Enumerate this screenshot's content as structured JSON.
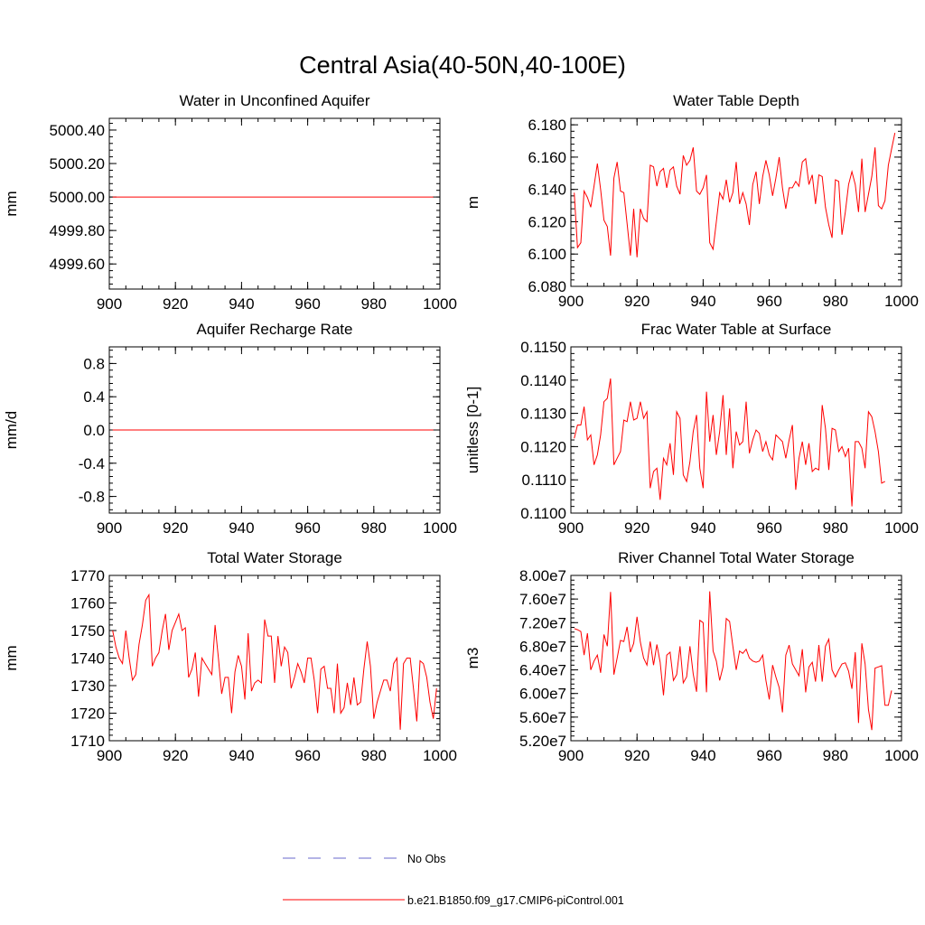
{
  "page": {
    "title": "Central Asia(40-50N,40-100E)"
  },
  "colors": {
    "series": "#ff0000",
    "obs": "#6a6acd",
    "frame": "#000000"
  },
  "legend": {
    "obs_label": "No Obs",
    "model_label": "b.e21.B1850.f09_g17.CMIP6-piControl.001"
  },
  "chart_data": [
    {
      "type": "line",
      "title": "Water in Unconfined Aquifer",
      "xlabel": "",
      "ylabel": "mm",
      "xlim": [
        900,
        1000
      ],
      "ylim": [
        4999.45,
        5000.47
      ],
      "xticks": [
        900,
        920,
        940,
        960,
        980,
        1000
      ],
      "xtick_labels": [
        "900",
        "920",
        "940",
        "960",
        "980",
        "1000"
      ],
      "yticks": [
        4999.6,
        4999.8,
        5000.0,
        5000.2,
        5000.4
      ],
      "ytick_labels": [
        "4999.60",
        "4999.80",
        "5000.00",
        "5000.20",
        "5000.40"
      ],
      "series": [
        {
          "x_start": 901,
          "values": [
            5000.0,
            5000.0,
            5000.0,
            5000.0,
            5000.0,
            5000.0,
            5000.0,
            5000.0,
            5000.0,
            5000.0,
            5000.0,
            5000.0,
            5000.0,
            5000.0,
            5000.0,
            5000.0,
            5000.0,
            5000.0,
            5000.0,
            5000.0,
            5000.0,
            5000.0,
            5000.0,
            5000.0,
            5000.0,
            5000.0,
            5000.0,
            5000.0,
            5000.0,
            5000.0,
            5000.0,
            5000.0,
            5000.0,
            5000.0,
            5000.0,
            5000.0,
            5000.0,
            5000.0,
            5000.0,
            5000.0,
            5000.0,
            5000.0,
            5000.0,
            5000.0,
            5000.0,
            5000.0,
            5000.0,
            5000.0,
            5000.0,
            5000.0,
            5000.0,
            5000.0,
            5000.0,
            5000.0,
            5000.0,
            5000.0,
            5000.0,
            5000.0,
            5000.0,
            5000.0,
            5000.0,
            5000.0,
            5000.0,
            5000.0,
            5000.0,
            5000.0,
            5000.0,
            5000.0,
            5000.0,
            5000.0,
            5000.0,
            5000.0,
            5000.0,
            5000.0,
            5000.0,
            5000.0,
            5000.0,
            5000.0,
            5000.0,
            5000.0,
            5000.0,
            5000.0,
            5000.0,
            5000.0,
            5000.0,
            5000.0,
            5000.0,
            5000.0,
            5000.0,
            5000.0,
            5000.0,
            5000.0,
            5000.0,
            5000.0,
            5000.0,
            5000.0,
            5000.0,
            5000.0
          ]
        }
      ]
    },
    {
      "type": "line",
      "title": "Water Table Depth",
      "xlabel": "",
      "ylabel": "m",
      "xlim": [
        900,
        1000
      ],
      "ylim": [
        6.08,
        6.184
      ],
      "xticks": [
        900,
        920,
        940,
        960,
        980,
        1000
      ],
      "xtick_labels": [
        "900",
        "920",
        "940",
        "960",
        "980",
        "1000"
      ],
      "yticks": [
        6.08,
        6.1,
        6.12,
        6.14,
        6.16,
        6.18
      ],
      "ytick_labels": [
        "6.080",
        "6.100",
        "6.120",
        "6.140",
        "6.160",
        "6.180"
      ],
      "series": [
        {
          "x_start": 901,
          "values": [
            6.138,
            6.104,
            6.107,
            6.139,
            6.135,
            6.129,
            6.142,
            6.156,
            6.14,
            6.121,
            6.117,
            6.099,
            6.147,
            6.157,
            6.139,
            6.138,
            6.119,
            6.099,
            6.128,
            6.098,
            6.128,
            6.122,
            6.12,
            6.155,
            6.154,
            6.142,
            6.151,
            6.153,
            6.141,
            6.152,
            6.154,
            6.142,
            6.137,
            6.161,
            6.155,
            6.158,
            6.166,
            6.139,
            6.137,
            6.141,
            6.149,
            6.107,
            6.103,
            6.12,
            6.138,
            6.134,
            6.146,
            6.132,
            6.138,
            6.157,
            6.131,
            6.138,
            6.131,
            6.118,
            6.143,
            6.151,
            6.131,
            6.148,
            6.158,
            6.149,
            6.136,
            6.147,
            6.16,
            6.141,
            6.128,
            6.141,
            6.141,
            6.145,
            6.142,
            6.157,
            6.159,
            6.143,
            6.149,
            6.131,
            6.149,
            6.148,
            6.129,
            6.118,
            6.11,
            6.146,
            6.145,
            6.112,
            6.126,
            6.143,
            6.151,
            6.143,
            6.126,
            6.159,
            6.126,
            6.137,
            6.148,
            6.166,
            6.13,
            6.128,
            6.133,
            6.155,
            6.165,
            6.175
          ]
        }
      ]
    },
    {
      "type": "line",
      "title": "Aquifer Recharge Rate",
      "xlabel": "",
      "ylabel": "mm/d",
      "xlim": [
        900,
        1000
      ],
      "ylim": [
        -1.0,
        1.0
      ],
      "xticks": [
        900,
        920,
        940,
        960,
        980,
        1000
      ],
      "xtick_labels": [
        "900",
        "920",
        "940",
        "960",
        "980",
        "1000"
      ],
      "yticks": [
        -0.8,
        -0.4,
        0.0,
        0.4,
        0.8
      ],
      "ytick_labels": [
        "-0.8",
        "-0.4",
        "0.0",
        "0.4",
        "0.8"
      ],
      "series": [
        {
          "x_start": 901,
          "values": [
            0,
            0,
            0,
            0,
            0,
            0,
            0,
            0,
            0,
            0,
            0,
            0,
            0,
            0,
            0,
            0,
            0,
            0,
            0,
            0,
            0,
            0,
            0,
            0,
            0,
            0,
            0,
            0,
            0,
            0,
            0,
            0,
            0,
            0,
            0,
            0,
            0,
            0,
            0,
            0,
            0,
            0,
            0,
            0,
            0,
            0,
            0,
            0,
            0,
            0,
            0,
            0,
            0,
            0,
            0,
            0,
            0,
            0,
            0,
            0,
            0,
            0,
            0,
            0,
            0,
            0,
            0,
            0,
            0,
            0,
            0,
            0,
            0,
            0,
            0,
            0,
            0,
            0,
            0,
            0,
            0,
            0,
            0,
            0,
            0,
            0,
            0,
            0,
            0,
            0,
            0,
            0,
            0,
            0,
            0,
            0,
            0,
            0
          ]
        }
      ]
    },
    {
      "type": "line",
      "title": "Frac Water Table at Surface",
      "xlabel": "",
      "ylabel": "unitless [0-1]",
      "xlim": [
        900,
        1000
      ],
      "ylim": [
        0.11,
        0.115
      ],
      "xticks": [
        900,
        920,
        940,
        960,
        980,
        1000
      ],
      "xtick_labels": [
        "900",
        "920",
        "940",
        "960",
        "980",
        "1000"
      ],
      "yticks": [
        0.11,
        0.111,
        0.112,
        0.113,
        0.114,
        0.115
      ],
      "ytick_labels": [
        "0.1100",
        "0.1110",
        "0.1120",
        "0.1130",
        "0.1140",
        "0.1150"
      ],
      "series": [
        {
          "x_start": 901,
          "values": [
            0.11225,
            0.11265,
            0.11265,
            0.1132,
            0.1122,
            0.11235,
            0.11145,
            0.11175,
            0.11235,
            0.11335,
            0.11345,
            0.11405,
            0.11145,
            0.11165,
            0.11185,
            0.1128,
            0.11275,
            0.11335,
            0.1128,
            0.11285,
            0.11335,
            0.11285,
            0.11305,
            0.11075,
            0.11125,
            0.11135,
            0.1104,
            0.11165,
            0.11145,
            0.1121,
            0.11115,
            0.11305,
            0.11285,
            0.11115,
            0.11095,
            0.11155,
            0.11245,
            0.11295,
            0.11135,
            0.11075,
            0.11365,
            0.11215,
            0.11295,
            0.11175,
            0.11245,
            0.11355,
            0.11175,
            0.11315,
            0.11135,
            0.11245,
            0.11205,
            0.11215,
            0.11335,
            0.1118,
            0.1122,
            0.1125,
            0.1124,
            0.11185,
            0.11215,
            0.11175,
            0.1116,
            0.11235,
            0.11225,
            0.11215,
            0.11165,
            0.1122,
            0.11265,
            0.1107,
            0.11165,
            0.11215,
            0.11145,
            0.1121,
            0.11125,
            0.11135,
            0.1113,
            0.11325,
            0.11255,
            0.1113,
            0.11255,
            0.1125,
            0.11185,
            0.112,
            0.1117,
            0.11195,
            0.1102,
            0.11215,
            0.11215,
            0.11195,
            0.11135,
            0.11305,
            0.1129,
            0.11245,
            0.11185,
            0.1109,
            0.11095
          ]
        }
      ]
    },
    {
      "type": "line",
      "title": "Total Water Storage",
      "xlabel": "",
      "ylabel": "mm",
      "xlim": [
        900,
        1000
      ],
      "ylim": [
        1710,
        1770
      ],
      "xticks": [
        900,
        920,
        940,
        960,
        980,
        1000
      ],
      "xtick_labels": [
        "900",
        "920",
        "940",
        "960",
        "980",
        "1000"
      ],
      "yticks": [
        1710,
        1720,
        1730,
        1740,
        1750,
        1760,
        1770
      ],
      "ytick_labels": [
        "1710",
        "1720",
        "1730",
        "1740",
        "1750",
        "1760",
        "1770"
      ],
      "series": [
        {
          "x_start": 901,
          "values": [
            1750,
            1744,
            1740,
            1738,
            1750,
            1740,
            1732,
            1734,
            1745,
            1752,
            1761,
            1763,
            1737,
            1740,
            1742,
            1750,
            1756,
            1743,
            1750,
            1753,
            1756,
            1750,
            1751,
            1733,
            1736,
            1742,
            1726,
            1740,
            1738,
            1736,
            1734,
            1752,
            1740,
            1727,
            1733,
            1733,
            1720,
            1735,
            1741,
            1737,
            1725,
            1749,
            1728,
            1731,
            1732,
            1731,
            1754,
            1748,
            1748,
            1731,
            1748,
            1737,
            1744,
            1742,
            1729,
            1733,
            1738,
            1735,
            1731,
            1740,
            1740,
            1732,
            1720,
            1736,
            1737,
            1729,
            1729,
            1720,
            1738,
            1720,
            1722,
            1731,
            1723,
            1733,
            1723,
            1724,
            1736,
            1746,
            1737,
            1718,
            1724,
            1728,
            1732,
            1732,
            1728,
            1738,
            1740,
            1714,
            1738,
            1740,
            1740,
            1729,
            1717,
            1739,
            1738,
            1733,
            1724,
            1718,
            1729
          ]
        }
      ]
    },
    {
      "type": "line",
      "title": "River Channel Total Water Storage",
      "xlabel": "",
      "ylabel": "m3",
      "xlim": [
        900,
        1000
      ],
      "ylim": [
        52000000,
        80000000
      ],
      "xticks": [
        900,
        920,
        940,
        960,
        980,
        1000
      ],
      "xtick_labels": [
        "900",
        "920",
        "940",
        "960",
        "980",
        "1000"
      ],
      "yticks": [
        52000000,
        56000000,
        60000000,
        64000000,
        68000000,
        72000000,
        76000000,
        80000000
      ],
      "ytick_labels": [
        "5.20e7",
        "5.60e7",
        "6.00e7",
        "6.40e7",
        "6.80e7",
        "7.20e7",
        "7.60e7",
        "8.00e7"
      ],
      "series": [
        {
          "x_start": 901,
          "values": [
            71000000,
            70800000,
            70500000,
            66500000,
            70200000,
            64000000,
            65500000,
            66500000,
            63500000,
            70000000,
            68000000,
            77200000,
            63200000,
            66000000,
            69000000,
            68800000,
            71300000,
            67000000,
            68500000,
            73000000,
            68700000,
            66000000,
            64800000,
            68800000,
            64800000,
            68300000,
            65300000,
            59700000,
            66500000,
            67000000,
            62200000,
            63200000,
            68000000,
            61800000,
            62800000,
            68000000,
            63300000,
            60300000,
            72400000,
            72000000,
            60200000,
            77300000,
            67200000,
            65500000,
            62200000,
            64500000,
            72700000,
            72200000,
            68000000,
            64000000,
            67200000,
            66800000,
            67500000,
            66000000,
            65500000,
            65300000,
            65500000,
            66500000,
            62200000,
            59000000,
            64800000,
            62800000,
            61000000,
            56800000,
            66500000,
            68200000,
            65000000,
            64000000,
            63000000,
            67500000,
            60200000,
            64500000,
            65300000,
            62000000,
            68200000,
            62000000,
            68000000,
            69200000,
            64000000,
            62800000,
            64000000,
            65000000,
            65200000,
            63800000,
            60800000,
            67000000,
            55000000,
            68500000,
            65000000,
            57300000,
            53800000,
            64300000,
            64500000,
            64700000,
            58000000,
            58000000,
            60500000
          ]
        }
      ]
    }
  ]
}
